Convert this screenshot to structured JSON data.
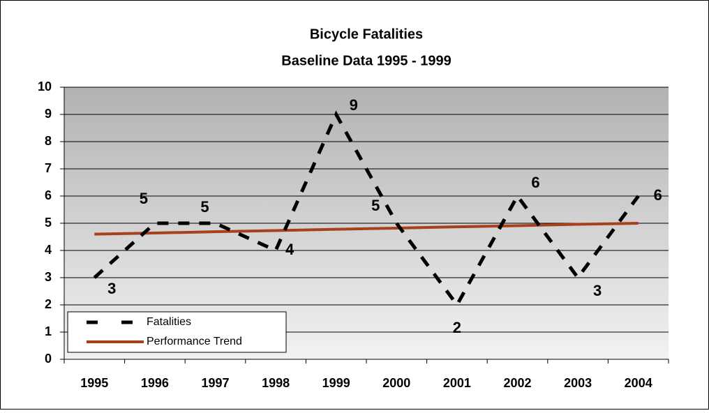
{
  "chart_data": {
    "type": "line",
    "title": "Bicycle Fatalities",
    "subtitle": "Baseline Data 1995 - 1999",
    "categories": [
      "1995",
      "1996",
      "1997",
      "1998",
      "1999",
      "2000",
      "2001",
      "2002",
      "2003",
      "2004"
    ],
    "series": [
      {
        "name": "Fatalities",
        "color": "#000000",
        "style": "dashed",
        "data_labels": true,
        "values": [
          3,
          5,
          5,
          4,
          9,
          5,
          2,
          6,
          3,
          6
        ]
      },
      {
        "name": "Performance Trend",
        "color": "#a8401c",
        "style": "solid",
        "data_labels": false,
        "values": [
          4.6,
          4.64,
          4.69,
          4.73,
          4.78,
          4.82,
          4.87,
          4.91,
          4.96,
          5.0
        ]
      }
    ],
    "ylim": [
      0,
      10
    ],
    "yticks": [
      0,
      1,
      2,
      3,
      4,
      5,
      6,
      7,
      8,
      9,
      10
    ],
    "grid": true,
    "legend": "lower left"
  }
}
